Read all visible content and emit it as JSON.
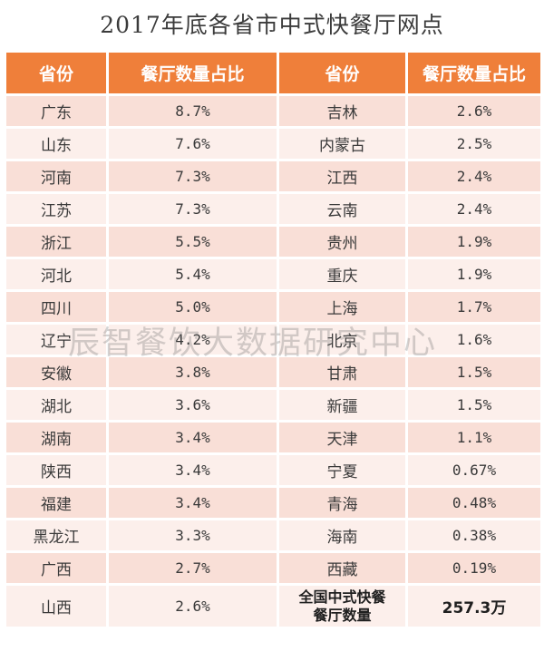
{
  "title": "2017年底各省市中式快餐厅网点",
  "headers": [
    "省份",
    "餐厅数量占比",
    "省份",
    "餐厅数量占比"
  ],
  "rows": [
    {
      "p1": "广东",
      "v1": "8.7%",
      "p2": "吉林",
      "v2": "2.6%"
    },
    {
      "p1": "山东",
      "v1": "7.6%",
      "p2": "内蒙古",
      "v2": "2.5%"
    },
    {
      "p1": "河南",
      "v1": "7.3%",
      "p2": "江西",
      "v2": "2.4%"
    },
    {
      "p1": "江苏",
      "v1": "7.3%",
      "p2": "云南",
      "v2": "2.4%"
    },
    {
      "p1": "浙江",
      "v1": "5.5%",
      "p2": "贵州",
      "v2": "1.9%"
    },
    {
      "p1": "河北",
      "v1": "5.4%",
      "p2": "重庆",
      "v2": "1.9%"
    },
    {
      "p1": "四川",
      "v1": "5.0%",
      "p2": "上海",
      "v2": "1.7%"
    },
    {
      "p1": "辽宁",
      "v1": "4.2%",
      "p2": "北京",
      "v2": "1.6%"
    },
    {
      "p1": "安徽",
      "v1": "3.8%",
      "p2": "甘肃",
      "v2": "1.5%"
    },
    {
      "p1": "湖北",
      "v1": "3.6%",
      "p2": "新疆",
      "v2": "1.5%"
    },
    {
      "p1": "湖南",
      "v1": "3.4%",
      "p2": "天津",
      "v2": "1.1%"
    },
    {
      "p1": "陕西",
      "v1": "3.4%",
      "p2": "宁夏",
      "v2": "0.67%"
    },
    {
      "p1": "福建",
      "v1": "3.4%",
      "p2": "青海",
      "v2": "0.48%"
    },
    {
      "p1": "黑龙江",
      "v1": "3.3%",
      "p2": "海南",
      "v2": "0.38%"
    },
    {
      "p1": "广西",
      "v1": "2.7%",
      "p2": "西藏",
      "v2": "0.19%"
    },
    {
      "p1": "山西",
      "v1": "2.6%",
      "p2_line1": "全国中式快餐",
      "p2_line2": "餐厅数量",
      "v2": "257.3万"
    }
  ],
  "watermark": "辰智餐饮大数据研究中心",
  "colors": {
    "header": "#ef7f3a",
    "row_dark": "#f9dfd7",
    "row_light": "#fcefeb"
  }
}
